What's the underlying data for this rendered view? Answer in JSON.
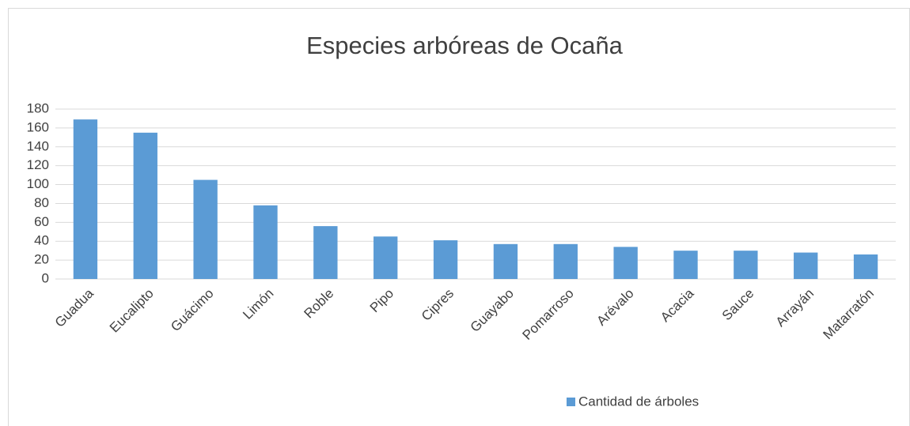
{
  "chart_data": {
    "type": "bar",
    "title": "Especies arbóreas de Ocaña",
    "categories": [
      "Guadua",
      "Eucalipto",
      "Guácimo",
      "Limón",
      "Roble",
      "Pipo",
      "Cipres",
      "Guayabo",
      "Pomarroso",
      "Arévalo",
      "Acacia",
      "Sauce",
      "Arrayán",
      "Matarratón"
    ],
    "series": [
      {
        "name": "Cantidad de árboles",
        "color": "#5b9bd5",
        "values": [
          169,
          155,
          105,
          78,
          56,
          45,
          41,
          37,
          37,
          34,
          30,
          30,
          28,
          26
        ]
      }
    ],
    "ylim": [
      0,
      180
    ],
    "yticks": [
      0,
      20,
      40,
      60,
      80,
      100,
      120,
      140,
      160,
      180
    ],
    "grid": true,
    "legend": "bottom"
  }
}
